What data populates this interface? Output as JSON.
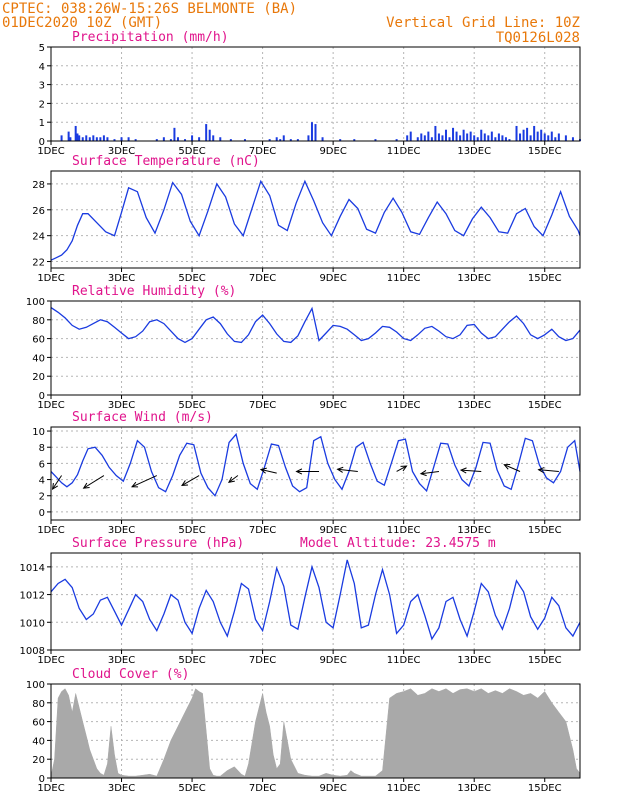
{
  "header": {
    "line1_left": "CPTEC:   038:26W-15:26S   BELMONTE (BA)",
    "line2_left": "01DEC2020 10Z (GMT)",
    "line1_right": "Vertical Grid Line: 10Z",
    "line2_right": "TQ0126L028",
    "colors": {
      "header": "#e8780a",
      "title": "#e0148c",
      "series": "#1a3be0",
      "cloud": "#a9a9a9"
    }
  },
  "x_axis": {
    "tick_labels": [
      "1DEC",
      "3DEC",
      "5DEC",
      "7DEC",
      "9DEC",
      "11DEC",
      "13DEC",
      "15DEC"
    ],
    "tick_days": [
      0,
      2,
      4,
      6,
      8,
      10,
      12,
      14
    ],
    "range_days": [
      0,
      15
    ]
  },
  "chart_data": [
    {
      "type": "bar",
      "title": "Precipitation (mm/h)",
      "ylim": [
        0,
        5
      ],
      "yticks": [
        0,
        1,
        2,
        3,
        4,
        5
      ],
      "x_days": [
        0.3,
        0.5,
        0.55,
        0.7,
        0.75,
        0.8,
        0.9,
        1.0,
        1.1,
        1.2,
        1.3,
        1.4,
        1.5,
        1.6,
        1.8,
        2.0,
        2.2,
        2.4,
        3.0,
        3.2,
        3.4,
        3.5,
        3.6,
        3.8,
        4.0,
        4.2,
        4.4,
        4.5,
        4.6,
        4.8,
        5.1,
        5.5,
        6.2,
        6.4,
        6.5,
        6.6,
        6.8,
        7.0,
        7.3,
        7.4,
        7.5,
        7.7,
        8.2,
        8.6,
        9.2,
        9.8,
        10.1,
        10.2,
        10.4,
        10.5,
        10.6,
        10.7,
        10.8,
        10.9,
        11.0,
        11.1,
        11.2,
        11.3,
        11.4,
        11.5,
        11.6,
        11.7,
        11.8,
        11.9,
        12.0,
        12.1,
        12.2,
        12.3,
        12.4,
        12.5,
        12.6,
        12.7,
        12.8,
        12.9,
        13.0,
        13.2,
        13.3,
        13.4,
        13.5,
        13.6,
        13.7,
        13.8,
        13.9,
        14.0,
        14.1,
        14.2,
        14.3,
        14.4,
        14.6,
        14.8,
        15.0
      ],
      "values": [
        0.3,
        0.5,
        0.2,
        0.8,
        0.4,
        0.3,
        0.2,
        0.3,
        0.2,
        0.3,
        0.2,
        0.2,
        0.3,
        0.2,
        0.1,
        0.2,
        0.2,
        0.1,
        0.1,
        0.2,
        0.1,
        0.7,
        0.2,
        0.1,
        0.3,
        0.2,
        0.9,
        0.6,
        0.3,
        0.2,
        0.1,
        0.1,
        0.1,
        0.2,
        0.1,
        0.3,
        0.1,
        0.1,
        0.3,
        1.0,
        0.9,
        0.2,
        0.1,
        0.1,
        0.1,
        0.1,
        0.3,
        0.5,
        0.2,
        0.4,
        0.3,
        0.5,
        0.2,
        0.8,
        0.4,
        0.3,
        0.6,
        0.2,
        0.7,
        0.5,
        0.3,
        0.6,
        0.4,
        0.5,
        0.3,
        0.2,
        0.6,
        0.4,
        0.3,
        0.5,
        0.2,
        0.4,
        0.3,
        0.2,
        0.1,
        0.8,
        0.4,
        0.6,
        0.7,
        0.3,
        0.8,
        0.5,
        0.6,
        0.4,
        0.3,
        0.5,
        0.2,
        0.4,
        0.3,
        0.2,
        0.1
      ]
    },
    {
      "type": "line",
      "title": "Surface Temperature (nC)",
      "ylim": [
        21.5,
        29
      ],
      "yticks": [
        22,
        24,
        26,
        28
      ],
      "x_days": [
        0,
        0.15,
        0.3,
        0.45,
        0.6,
        0.75,
        0.9,
        1.05,
        1.3,
        1.55,
        1.8,
        2.0,
        2.2,
        2.45,
        2.7,
        2.95,
        3.2,
        3.45,
        3.7,
        3.95,
        4.2,
        4.45,
        4.7,
        4.95,
        5.2,
        5.45,
        5.7,
        5.95,
        6.2,
        6.45,
        6.7,
        6.95,
        7.2,
        7.45,
        7.7,
        7.95,
        8.2,
        8.45,
        8.7,
        8.95,
        9.2,
        9.45,
        9.7,
        9.95,
        10.2,
        10.45,
        10.7,
        10.95,
        11.2,
        11.45,
        11.7,
        11.95,
        12.2,
        12.45,
        12.7,
        12.95,
        13.2,
        13.45,
        13.7,
        13.95,
        14.2,
        14.45,
        14.7,
        14.95,
        15.0
      ],
      "values": [
        22.1,
        22.3,
        22.5,
        22.9,
        23.6,
        24.8,
        25.7,
        25.7,
        25.0,
        24.3,
        24.0,
        25.8,
        27.7,
        27.4,
        25.4,
        24.2,
        26.0,
        28.1,
        27.2,
        25.1,
        24.0,
        25.9,
        28.0,
        27.0,
        24.9,
        24.0,
        26.1,
        28.2,
        27.1,
        24.8,
        24.4,
        26.5,
        28.2,
        26.7,
        25.0,
        24.0,
        25.5,
        26.8,
        26.1,
        24.5,
        24.2,
        25.8,
        26.9,
        25.8,
        24.3,
        24.1,
        25.4,
        26.6,
        25.7,
        24.4,
        24.0,
        25.3,
        26.2,
        25.4,
        24.3,
        24.2,
        25.7,
        26.1,
        24.7,
        24.0,
        25.6,
        27.4,
        25.5,
        24.4,
        24.0
      ]
    },
    {
      "type": "line",
      "title": "Relative Humidity (%)",
      "ylim": [
        0,
        100
      ],
      "yticks": [
        0,
        20,
        40,
        60,
        80,
        100
      ],
      "x_days": [
        0,
        0.2,
        0.4,
        0.6,
        0.8,
        1.0,
        1.2,
        1.4,
        1.6,
        1.8,
        2.0,
        2.2,
        2.4,
        2.6,
        2.8,
        3.0,
        3.2,
        3.4,
        3.6,
        3.8,
        4.0,
        4.2,
        4.4,
        4.6,
        4.8,
        5.0,
        5.2,
        5.4,
        5.6,
        5.8,
        6.0,
        6.2,
        6.4,
        6.6,
        6.8,
        7.0,
        7.2,
        7.4,
        7.6,
        7.8,
        8.0,
        8.2,
        8.4,
        8.6,
        8.8,
        9.0,
        9.2,
        9.4,
        9.6,
        9.8,
        10.0,
        10.2,
        10.4,
        10.6,
        10.8,
        11.0,
        11.2,
        11.4,
        11.6,
        11.8,
        12.0,
        12.2,
        12.4,
        12.6,
        12.8,
        13.0,
        13.2,
        13.4,
        13.6,
        13.8,
        14.0,
        14.2,
        14.4,
        14.6,
        14.8,
        15.0
      ],
      "values": [
        93,
        88,
        82,
        74,
        70,
        72,
        76,
        80,
        78,
        72,
        66,
        60,
        62,
        68,
        78,
        80,
        76,
        68,
        60,
        56,
        60,
        70,
        80,
        83,
        76,
        65,
        57,
        56,
        64,
        78,
        85,
        76,
        65,
        57,
        56,
        63,
        78,
        92,
        58,
        66,
        74,
        73,
        70,
        64,
        58,
        60,
        66,
        73,
        72,
        67,
        60,
        58,
        64,
        71,
        73,
        68,
        62,
        60,
        64,
        74,
        75,
        66,
        60,
        62,
        70,
        78,
        84,
        76,
        64,
        60,
        64,
        70,
        62,
        58,
        60,
        69
      ]
    },
    {
      "type": "line",
      "title": "Surface Wind (m/s)",
      "ylim": [
        -1,
        10.5
      ],
      "yticks": [
        0,
        2,
        4,
        6,
        8,
        10
      ],
      "x_days": [
        0,
        0.15,
        0.3,
        0.45,
        0.6,
        0.75,
        0.9,
        1.05,
        1.25,
        1.45,
        1.65,
        1.85,
        2.05,
        2.25,
        2.45,
        2.65,
        2.85,
        3.05,
        3.25,
        3.45,
        3.65,
        3.85,
        4.05,
        4.25,
        4.45,
        4.65,
        4.85,
        5.05,
        5.25,
        5.45,
        5.65,
        5.85,
        6.05,
        6.25,
        6.45,
        6.65,
        6.85,
        7.05,
        7.25,
        7.45,
        7.65,
        7.85,
        8.05,
        8.25,
        8.45,
        8.65,
        8.85,
        9.05,
        9.25,
        9.45,
        9.65,
        9.85,
        10.05,
        10.25,
        10.45,
        10.65,
        10.85,
        11.05,
        11.25,
        11.45,
        11.65,
        11.85,
        12.05,
        12.25,
        12.45,
        12.65,
        12.85,
        13.05,
        13.25,
        13.45,
        13.65,
        13.85,
        14.05,
        14.25,
        14.45,
        14.65,
        14.85,
        15.0
      ],
      "values": [
        5.0,
        4.3,
        3.6,
        3.1,
        3.6,
        4.6,
        6.3,
        7.8,
        8.0,
        7.0,
        5.5,
        4.5,
        3.8,
        6.0,
        8.8,
        8.0,
        5.0,
        3.0,
        2.5,
        4.5,
        7.0,
        8.5,
        8.3,
        4.8,
        3.0,
        2.0,
        4.0,
        8.6,
        9.6,
        6.0,
        3.5,
        2.8,
        5.5,
        8.4,
        8.2,
        5.5,
        3.2,
        2.5,
        3.0,
        8.8,
        9.3,
        6.0,
        4.0,
        2.8,
        5.0,
        8.0,
        8.6,
        6.0,
        3.8,
        3.3,
        6.0,
        8.8,
        9.0,
        5.0,
        3.5,
        2.6,
        5.5,
        8.5,
        8.4,
        5.8,
        4.0,
        3.2,
        5.5,
        8.6,
        8.5,
        5.2,
        3.2,
        2.8,
        5.8,
        9.1,
        8.8,
        5.8,
        4.2,
        3.6,
        5.0,
        8.0,
        8.8,
        5.0
      ],
      "vector_x_days": [
        0.3,
        1.5,
        3.0,
        4.2,
        5.3,
        6.4,
        7.6,
        8.7,
        9.8,
        11.0,
        12.2,
        13.3,
        14.4
      ],
      "vector_u": [
        -2.0,
        -4.5,
        -5.5,
        -3.8,
        -2.0,
        -3.5,
        -5.0,
        -4.5,
        2.2,
        -4.0,
        -4.5,
        -3.5,
        -4.5
      ],
      "vector_v": [
        -3.0,
        -2.8,
        -2.5,
        -2.2,
        -1.5,
        0.8,
        0.0,
        0.5,
        1.2,
        -0.5,
        0.3,
        1.5,
        0.4
      ],
      "vector_y": [
        4.5,
        4.5,
        4.5,
        4.5,
        4.5,
        4.8,
        5.0,
        5.0,
        5.0,
        5.0,
        5.0,
        5.0,
        5.0
      ]
    },
    {
      "type": "line",
      "title": "Surface Pressure (hPa)",
      "annotation": "Model Altitude: 23.4575 m",
      "ylim": [
        1008,
        1015
      ],
      "yticks": [
        1008,
        1010,
        1012,
        1014
      ],
      "x_days": [
        0,
        0.2,
        0.4,
        0.6,
        0.8,
        1.0,
        1.2,
        1.4,
        1.6,
        1.8,
        2.0,
        2.2,
        2.4,
        2.6,
        2.8,
        3.0,
        3.2,
        3.4,
        3.6,
        3.8,
        4.0,
        4.2,
        4.4,
        4.6,
        4.8,
        5.0,
        5.2,
        5.4,
        5.6,
        5.8,
        6.0,
        6.2,
        6.4,
        6.6,
        6.8,
        7.0,
        7.2,
        7.4,
        7.6,
        7.8,
        8.0,
        8.2,
        8.4,
        8.6,
        8.8,
        9.0,
        9.2,
        9.4,
        9.6,
        9.8,
        10.0,
        10.2,
        10.4,
        10.6,
        10.8,
        11.0,
        11.2,
        11.4,
        11.6,
        11.8,
        12.0,
        12.2,
        12.4,
        12.6,
        12.8,
        13.0,
        13.2,
        13.4,
        13.6,
        13.8,
        14.0,
        14.2,
        14.4,
        14.6,
        14.8,
        15.0
      ],
      "values": [
        1012.2,
        1012.8,
        1013.1,
        1012.5,
        1011.0,
        1010.2,
        1010.6,
        1011.6,
        1011.8,
        1010.8,
        1009.8,
        1010.9,
        1012.0,
        1011.5,
        1010.2,
        1009.4,
        1010.6,
        1012.0,
        1011.6,
        1010.0,
        1009.2,
        1011.0,
        1012.3,
        1011.5,
        1010.0,
        1009.0,
        1010.8,
        1012.8,
        1012.4,
        1010.2,
        1009.4,
        1011.5,
        1013.9,
        1012.6,
        1009.8,
        1009.5,
        1011.8,
        1014.0,
        1012.5,
        1010.0,
        1009.6,
        1012.0,
        1014.5,
        1012.8,
        1009.6,
        1009.8,
        1012.0,
        1013.8,
        1012.0,
        1009.2,
        1009.8,
        1011.5,
        1012.0,
        1010.5,
        1008.8,
        1009.6,
        1011.5,
        1011.8,
        1010.2,
        1009.0,
        1010.8,
        1012.8,
        1012.2,
        1010.5,
        1009.5,
        1011.0,
        1013.0,
        1012.2,
        1010.4,
        1009.5,
        1010.3,
        1011.8,
        1011.2,
        1009.6,
        1009.0,
        1010.0
      ]
    },
    {
      "type": "area",
      "title": "Cloud Cover (%)",
      "ylim": [
        0,
        100
      ],
      "yticks": [
        0,
        20,
        40,
        60,
        80,
        100
      ],
      "x_days": [
        0,
        0.1,
        0.2,
        0.3,
        0.4,
        0.5,
        0.6,
        0.7,
        0.8,
        0.9,
        1.0,
        1.1,
        1.2,
        1.3,
        1.4,
        1.5,
        1.6,
        1.7,
        1.8,
        1.9,
        2.0,
        2.2,
        2.4,
        2.6,
        2.8,
        3.0,
        3.2,
        3.4,
        3.6,
        3.8,
        4.0,
        4.1,
        4.2,
        4.3,
        4.4,
        4.5,
        4.6,
        4.7,
        4.8,
        5.0,
        5.2,
        5.4,
        5.5,
        5.6,
        5.8,
        6.0,
        6.1,
        6.2,
        6.3,
        6.4,
        6.5,
        6.6,
        6.8,
        7.0,
        7.2,
        7.4,
        7.6,
        7.8,
        8.0,
        8.2,
        8.4,
        8.5,
        8.6,
        8.8,
        9.0,
        9.2,
        9.4,
        9.6,
        9.8,
        10.0,
        10.2,
        10.4,
        10.6,
        10.8,
        11.0,
        11.2,
        11.4,
        11.6,
        11.8,
        12.0,
        12.2,
        12.4,
        12.6,
        12.8,
        13.0,
        13.2,
        13.4,
        13.6,
        13.8,
        14.0,
        14.2,
        14.4,
        14.6,
        14.8,
        14.9,
        15.0
      ],
      "values": [
        2,
        20,
        85,
        92,
        95,
        88,
        70,
        90,
        75,
        60,
        45,
        30,
        20,
        10,
        5,
        3,
        15,
        55,
        25,
        5,
        3,
        2,
        2,
        3,
        4,
        2,
        20,
        40,
        55,
        70,
        85,
        95,
        92,
        90,
        50,
        10,
        3,
        2,
        2,
        8,
        12,
        4,
        2,
        15,
        60,
        90,
        70,
        55,
        25,
        10,
        15,
        60,
        20,
        5,
        3,
        2,
        2,
        5,
        3,
        2,
        3,
        8,
        5,
        2,
        2,
        2,
        8,
        85,
        90,
        92,
        95,
        88,
        90,
        95,
        92,
        95,
        90,
        94,
        95,
        92,
        95,
        90,
        93,
        90,
        95,
        92,
        88,
        90,
        85,
        92,
        80,
        70,
        60,
        30,
        10,
        5
      ]
    }
  ]
}
